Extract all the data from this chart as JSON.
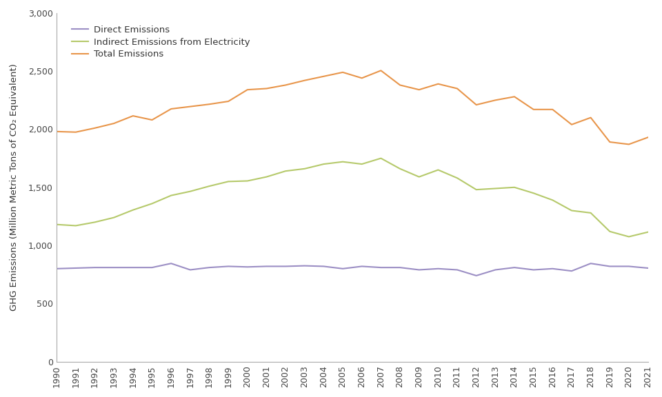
{
  "years": [
    1990,
    1991,
    1992,
    1993,
    1994,
    1995,
    1996,
    1997,
    1998,
    1999,
    2000,
    2001,
    2002,
    2003,
    2004,
    2005,
    2006,
    2007,
    2008,
    2009,
    2010,
    2011,
    2012,
    2013,
    2014,
    2015,
    2016,
    2017,
    2018,
    2019,
    2020,
    2021
  ],
  "direct_emissions": [
    800,
    805,
    810,
    810,
    810,
    810,
    845,
    790,
    810,
    820,
    815,
    820,
    820,
    825,
    820,
    800,
    820,
    810,
    810,
    790,
    800,
    790,
    740,
    790,
    810,
    790,
    800,
    780,
    845,
    820,
    820,
    805
  ],
  "indirect_emissions": [
    1180,
    1170,
    1200,
    1240,
    1305,
    1360,
    1430,
    1465,
    1510,
    1550,
    1555,
    1590,
    1640,
    1660,
    1700,
    1720,
    1700,
    1750,
    1660,
    1590,
    1650,
    1580,
    1480,
    1490,
    1500,
    1450,
    1390,
    1300,
    1280,
    1120,
    1075,
    1115
  ],
  "total_emissions": [
    1980,
    1975,
    2010,
    2050,
    2115,
    2080,
    2175,
    2195,
    2215,
    2240,
    2340,
    2350,
    2380,
    2420,
    2455,
    2490,
    2440,
    2505,
    2380,
    2340,
    2390,
    2350,
    2210,
    2250,
    2280,
    2170,
    2170,
    2040,
    2100,
    1890,
    1870,
    1930
  ],
  "direct_color": "#9b8ec4",
  "indirect_color": "#b5c96a",
  "total_color": "#e8954a",
  "ylabel": "GHG Emissions (Million Metric Tons of CO₂ Equivalent)",
  "ylim": [
    0,
    3000
  ],
  "yticks": [
    0,
    500,
    1000,
    1500,
    2000,
    2500,
    3000
  ],
  "legend_labels": [
    "Direct Emissions",
    "Indirect Emissions from Electricity",
    "Total Emissions"
  ],
  "background_color": "#ffffff",
  "line_width": 1.5,
  "spine_color": "#aaaaaa",
  "tick_color": "#444444",
  "label_color": "#333333"
}
